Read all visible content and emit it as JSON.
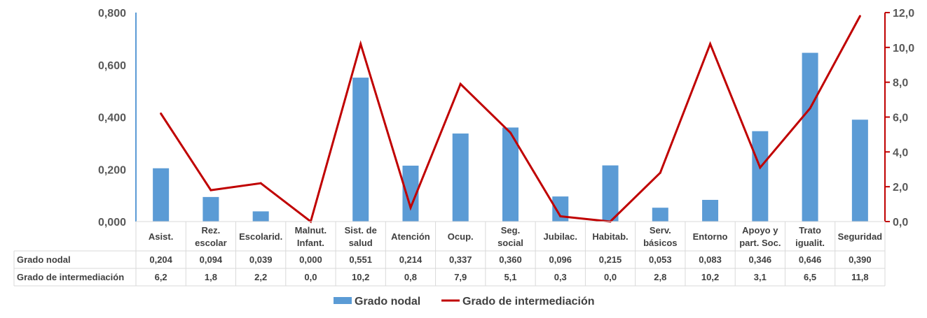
{
  "chart_data": {
    "type": "bar",
    "categories": [
      [
        "Asist."
      ],
      [
        "Rez.",
        "escolar"
      ],
      [
        "Escolarid."
      ],
      [
        "Malnut.",
        "Infant."
      ],
      [
        "Sist. de",
        "salud"
      ],
      [
        "Atención"
      ],
      [
        "Ocup."
      ],
      [
        "Seg.",
        "social"
      ],
      [
        "Jubilac."
      ],
      [
        "Habitab."
      ],
      [
        "Serv.",
        "básicos"
      ],
      [
        "Entorno"
      ],
      [
        "Apoyo y",
        "part. Soc."
      ],
      [
        "Trato",
        "igualit."
      ],
      [
        "Seguridad"
      ]
    ],
    "series": [
      {
        "name": "Grado nodal",
        "type": "bar",
        "axis": "left",
        "color": "#5B9BD5",
        "values": [
          0.204,
          0.094,
          0.039,
          0.0,
          0.551,
          0.214,
          0.337,
          0.36,
          0.096,
          0.215,
          0.053,
          0.083,
          0.346,
          0.646,
          0.39
        ],
        "labels": [
          "0,204",
          "0,094",
          "0,039",
          "0,000",
          "0,551",
          "0,214",
          "0,337",
          "0,360",
          "0,096",
          "0,215",
          "0,053",
          "0,083",
          "0,346",
          "0,646",
          "0,390"
        ]
      },
      {
        "name": "Grado de intermediación",
        "type": "line",
        "axis": "right",
        "color": "#C00000",
        "values": [
          6.2,
          1.8,
          2.2,
          0.0,
          10.2,
          0.8,
          7.9,
          5.1,
          0.3,
          0.0,
          2.8,
          10.2,
          3.1,
          6.5,
          11.8
        ],
        "labels": [
          "6,2",
          "1,8",
          "2,2",
          "0,0",
          "10,2",
          "0,8",
          "7,9",
          "5,1",
          "0,3",
          "0,0",
          "2,8",
          "10,2",
          "3,1",
          "6,5",
          "11,8"
        ]
      }
    ],
    "y_left": {
      "min": 0,
      "max": 0.8,
      "ticks": [
        "0,000",
        "0,200",
        "0,400",
        "0,600",
        "0,800"
      ]
    },
    "y_right": {
      "min": 0,
      "max": 12,
      "ticks": [
        "0,0",
        "2,0",
        "4,0",
        "6,0",
        "8,0",
        "10,0",
        "12,0"
      ]
    },
    "legend": {
      "position": "bottom",
      "entries": [
        "Grado nodal",
        "Grado de intermediación"
      ]
    },
    "grid": false
  }
}
